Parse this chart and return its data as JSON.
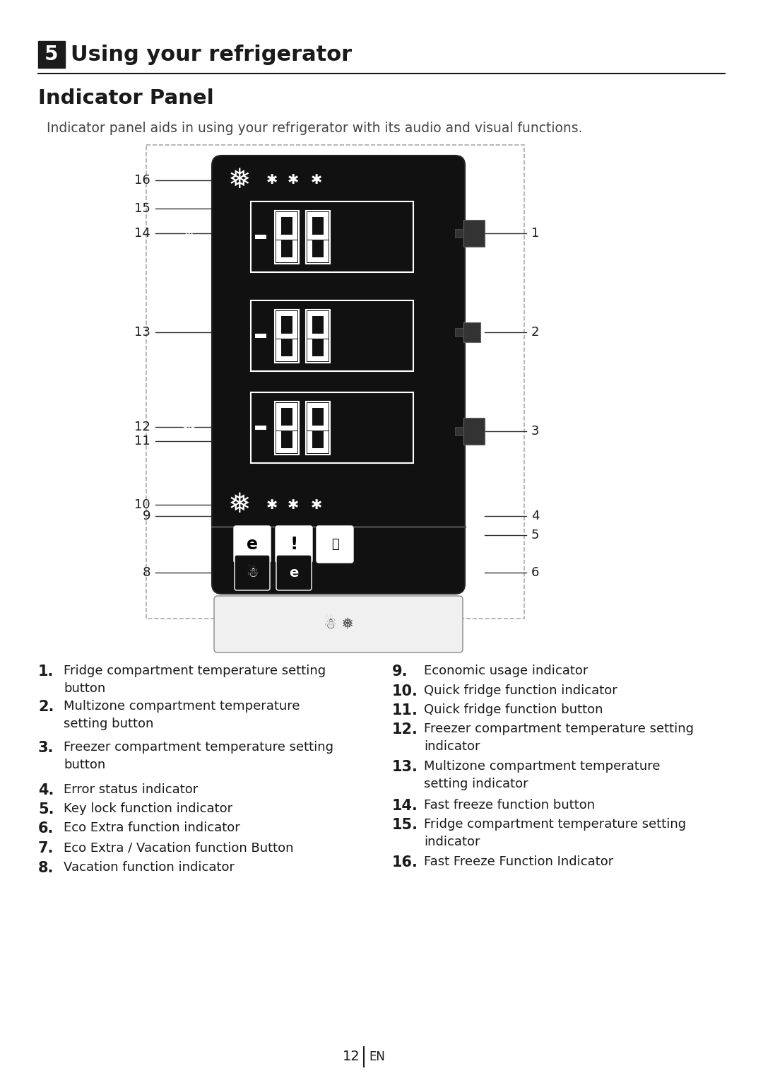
{
  "bg_color": "#ffffff",
  "title_number": "5",
  "title_text": "Using your refrigerator",
  "subtitle": "Indicator Panel",
  "description": "Indicator panel aids in using your refrigerator with its audio and visual functions.",
  "panel_bg": "#111111",
  "dashed_box_color": "#aaaaaa",
  "page_number": "12",
  "page_lang": "EN",
  "left_labels": [
    [
      162,
      "16"
    ],
    [
      205,
      "15"
    ],
    [
      228,
      "14"
    ],
    [
      305,
      "13"
    ],
    [
      393,
      "12"
    ],
    [
      415,
      "11"
    ],
    [
      483,
      "10"
    ],
    [
      498,
      "9"
    ],
    [
      562,
      "8"
    ]
  ],
  "right_labels": [
    [
      228,
      "1"
    ],
    [
      305,
      "2"
    ],
    [
      415,
      "3"
    ],
    [
      488,
      "4"
    ],
    [
      510,
      "5"
    ],
    [
      562,
      "6"
    ]
  ],
  "items_left": [
    [
      "1.",
      "Fridge compartment temperature setting\nbutton"
    ],
    [
      "2.",
      "Multizone compartment temperature\nsetting button"
    ],
    [
      "3.",
      "Freezer compartment temperature setting\nbutton"
    ],
    [
      "4.",
      "Error status indicator"
    ],
    [
      "5.",
      "Key lock function indicator"
    ],
    [
      "6.",
      "Eco Extra function indicator"
    ],
    [
      "7.",
      "Eco Extra / Vacation function Button"
    ],
    [
      "8.",
      "Vacation function indicator"
    ]
  ],
  "items_right": [
    [
      "9.",
      "Economic usage indicator"
    ],
    [
      "10.",
      "Quick fridge function indicator"
    ],
    [
      "11.",
      "Quick fridge function button"
    ],
    [
      "12.",
      "Freezer compartment temperature setting\nindicator"
    ],
    [
      "13.",
      "Multizone compartment temperature\nsetting indicator"
    ],
    [
      "14.",
      "Fast freeze function button"
    ],
    [
      "15.",
      "Fridge compartment temperature setting\nindicator"
    ],
    [
      "16.",
      "Fast Freeze Function Indicator"
    ]
  ]
}
